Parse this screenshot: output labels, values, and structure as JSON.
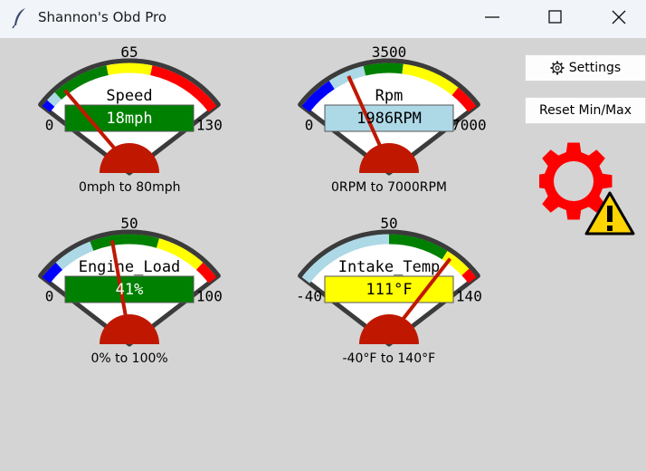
{
  "window": {
    "title": "Shannon's Obd Pro"
  },
  "buttons": {
    "settings": "Settings",
    "reset": "Reset Min/Max"
  },
  "status": {
    "icon": "gear-warning-icon"
  },
  "colors": {
    "green": "#008000",
    "yellow": "#ffff00",
    "red": "#ff0000",
    "blue": "#0000ff",
    "lightblue": "#add8e6",
    "needle": "#c01800",
    "hub": "#c01800"
  },
  "gauges": [
    {
      "name": "Speed",
      "value": 18,
      "unit": "mph",
      "display": "18mph",
      "display_color": "green",
      "text_color": "#ffffff",
      "min": 0,
      "max": 130,
      "mid_label": "65",
      "min_label": "0",
      "max_label": "130",
      "range_text": "0mph  to 80mph",
      "bands": [
        [
          "blue",
          0,
          5
        ],
        [
          "lightblue",
          5,
          12
        ],
        [
          "green",
          12,
          50
        ],
        [
          "yellow",
          50,
          80
        ],
        [
          "red",
          80,
          130
        ]
      ]
    },
    {
      "name": "Rpm",
      "value": 1986,
      "unit": "RPM",
      "display": "1986RPM",
      "display_color": "lightblue",
      "text_color": "#000000",
      "min": 0,
      "max": 7000,
      "mid_label": "3500",
      "min_label": "0",
      "max_label": "7000",
      "range_text": "0RPM  to 7000RPM",
      "bands": [
        [
          "blue",
          0,
          1300
        ],
        [
          "lightblue",
          1300,
          2600
        ],
        [
          "green",
          2600,
          4000
        ],
        [
          "yellow",
          4000,
          6100
        ],
        [
          "red",
          6100,
          7000
        ]
      ]
    },
    {
      "name": "Engine_Load",
      "value": 41,
      "unit": "%",
      "display": "41%",
      "display_color": "green",
      "text_color": "#ffffff",
      "min": 0,
      "max": 100,
      "mid_label": "50",
      "min_label": "0",
      "max_label": "100",
      "range_text": "0%  to 100%",
      "bands": [
        [
          "blue",
          0,
          10
        ],
        [
          "lightblue",
          10,
          30
        ],
        [
          "green",
          30,
          65
        ],
        [
          "yellow",
          65,
          90
        ],
        [
          "red",
          90,
          100
        ]
      ]
    },
    {
      "name": "Intake_Temp",
      "value": 111,
      "unit": "°F",
      "display": "111°F",
      "display_color": "yellow",
      "text_color": "#000000",
      "min": -40,
      "max": 140,
      "mid_label": "50",
      "min_label": "-40",
      "max_label": "140",
      "range_text": "-40°F  to 140°F",
      "bands": [
        [
          "lightblue",
          -40,
          50
        ],
        [
          "green",
          50,
          105
        ],
        [
          "yellow",
          105,
          130
        ],
        [
          "red",
          130,
          140
        ]
      ]
    }
  ]
}
